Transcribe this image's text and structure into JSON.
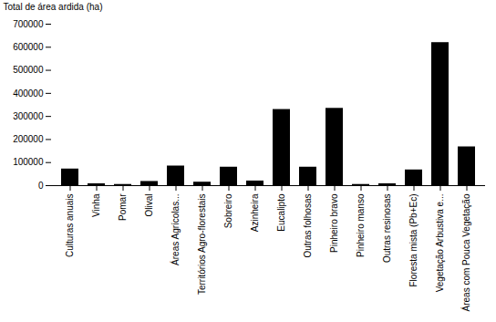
{
  "chart_data": {
    "type": "bar",
    "ylabel": "Total de área ardida (ha)",
    "categories": [
      "Culturas anuais",
      "Vinha",
      "Pomar",
      "Olival",
      "Áreas Agrícolas...",
      "Territórios Agro-florestais",
      "Sobreiro",
      "Azinheira",
      "Eucalipto",
      "Outras folhosas",
      "Pinheiro bravo",
      "Pinheiro manso",
      "Outras resinosas",
      "Floresta mista (Pb+Ec)",
      "Vegetação Arbustiva e...",
      "Áreas com Pouca Vegetação"
    ],
    "values": [
      72000,
      8000,
      5000,
      18000,
      85000,
      15000,
      80000,
      20000,
      330000,
      80000,
      335000,
      5000,
      8000,
      68000,
      620000,
      168000
    ],
    "color": "#000000",
    "ylim": [
      0,
      700000
    ],
    "yticks": [
      0,
      100000,
      200000,
      300000,
      400000,
      500000,
      600000,
      700000
    ],
    "grid": false
  }
}
